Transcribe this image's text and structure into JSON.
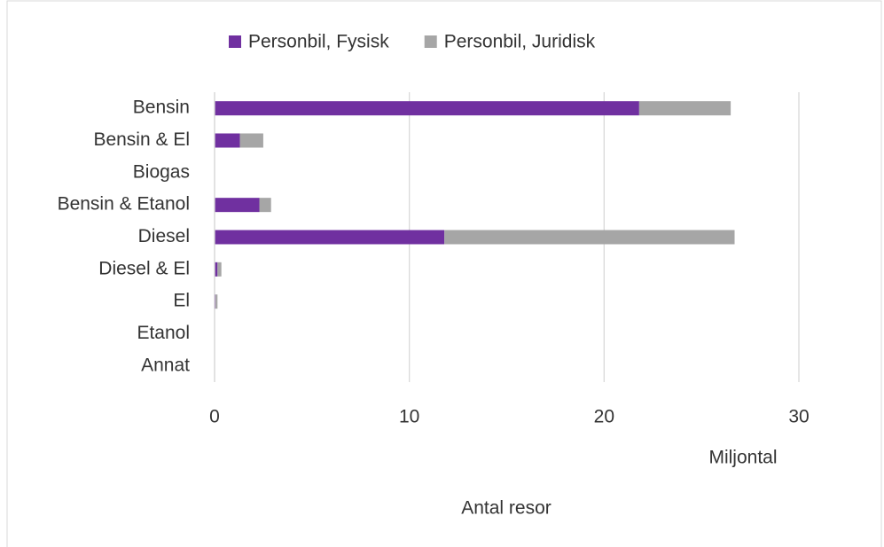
{
  "chart_data": {
    "type": "stacked_bar_horizontal",
    "categories": [
      "Bensin",
      "Bensin & El",
      "Biogas",
      "Bensin & Etanol",
      "Diesel",
      "Diesel & El",
      "El",
      "Etanol",
      "Annat"
    ],
    "series": [
      {
        "name": "Personbil, Fysisk",
        "color": "#7030a0",
        "values": [
          21.8,
          1.3,
          0,
          2.3,
          11.8,
          0.15,
          0.05,
          0,
          0
        ]
      },
      {
        "name": "Personbil, Juridisk",
        "color": "#a6a6a6",
        "values": [
          4.7,
          1.2,
          0,
          0.6,
          14.9,
          0.2,
          0.1,
          0,
          0
        ]
      }
    ],
    "xlim": [
      0,
      30
    ],
    "xticks": [
      0,
      10,
      20,
      30
    ],
    "grid": true,
    "legend": "top",
    "annotation": "Miljontal",
    "xlabel": "Antal resor"
  }
}
